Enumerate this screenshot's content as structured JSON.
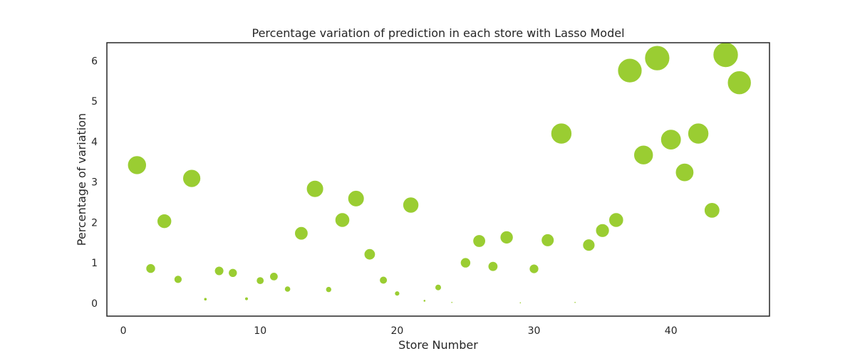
{
  "chart_data": {
    "type": "scatter",
    "title": "Percentage variation of prediction in each store with Lasso Model",
    "xlabel": "Store Number",
    "ylabel": "Percentage of variation",
    "xlim": [
      -1.2,
      47.2
    ],
    "ylim": [
      -0.32,
      6.45
    ],
    "xticks": [
      0,
      10,
      20,
      30,
      40
    ],
    "yticks": [
      0,
      1,
      2,
      3,
      4,
      5,
      6
    ],
    "grid": false,
    "legend": "none",
    "marker_color": "#9acd32",
    "marker_size_encodes": "y",
    "x": [
      1,
      2,
      3,
      4,
      5,
      6,
      7,
      8,
      9,
      10,
      11,
      12,
      13,
      14,
      15,
      16,
      17,
      18,
      19,
      20,
      21,
      22,
      23,
      24,
      25,
      26,
      27,
      28,
      29,
      30,
      31,
      32,
      33,
      34,
      35,
      36,
      37,
      38,
      39,
      40,
      41,
      42,
      43,
      44,
      45
    ],
    "y": [
      3.42,
      0.86,
      2.03,
      0.59,
      3.09,
      0.1,
      0.8,
      0.75,
      0.11,
      0.56,
      0.66,
      0.35,
      1.73,
      2.83,
      0.34,
      2.06,
      2.59,
      1.21,
      0.57,
      0.24,
      2.43,
      0.06,
      0.39,
      0.02,
      1.0,
      1.54,
      0.91,
      1.63,
      0.01,
      0.85,
      1.56,
      4.2,
      0.02,
      1.44,
      1.8,
      2.06,
      5.76,
      3.67,
      6.07,
      4.05,
      3.24,
      4.2,
      2.3,
      6.15,
      5.46
    ]
  }
}
